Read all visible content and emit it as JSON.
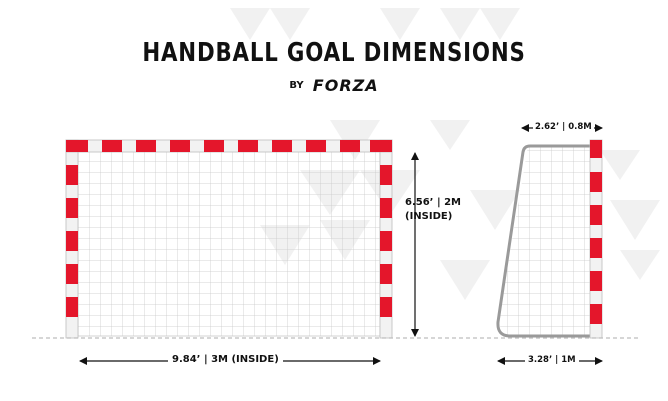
{
  "header": {
    "title": "HANDBALL GOAL DIMENSIONS",
    "by": "BY",
    "brand": "FORZA"
  },
  "labels": {
    "width": "9.84’ | 3M (INSIDE)",
    "height_line1": "6.56’ | 2M",
    "height_line2": "(INSIDE)",
    "depth_top": "2.62’ | 0.8M",
    "depth_base": "3.28’ | 1M"
  },
  "colors": {
    "post_red": "#e4162b",
    "post_white": "#f2f2f2",
    "net_line": "#c9c9c9",
    "frame_outline": "#9a9a9a",
    "arrow": "#111111",
    "ground_dash": "#bdbdbd",
    "background_triangles": "#f1f1f1"
  }
}
